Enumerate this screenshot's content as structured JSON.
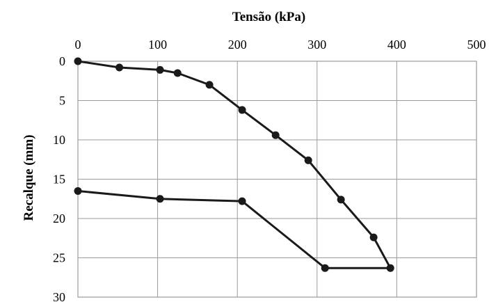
{
  "chart_data": {
    "type": "line",
    "xlabel": "Tensão (kPa)",
    "ylabel": "Recalque (mm)",
    "x_ticks": [
      "0",
      "100",
      "200",
      "300",
      "400",
      "500"
    ],
    "y_ticks": [
      "0",
      "5",
      "10",
      "15",
      "20",
      "25",
      "30"
    ],
    "xlim": [
      0,
      500
    ],
    "ylim": [
      0,
      30
    ],
    "x_axis_position": "top",
    "y_axis_inverted": true,
    "grid": true,
    "series": [
      {
        "x": [
          0,
          52,
          103,
          125,
          165,
          206,
          248,
          289,
          330,
          371,
          392,
          310,
          206,
          103,
          0
        ],
        "y": [
          0,
          0.8,
          1.1,
          1.5,
          3.0,
          6.2,
          9.4,
          12.6,
          17.6,
          22.4,
          26.3,
          26.3,
          17.8,
          17.5,
          16.5
        ]
      }
    ],
    "colors": {
      "line": "#1a1a1a",
      "grid": "#9a9a9a"
    }
  }
}
